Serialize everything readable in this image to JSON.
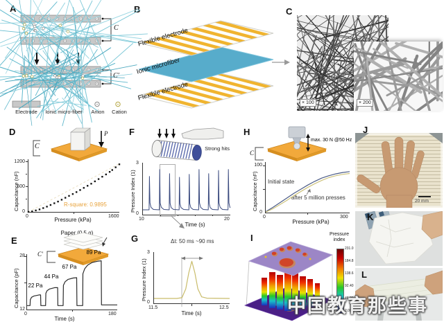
{
  "figure": {
    "panel_labels": {
      "A": "A",
      "B": "B",
      "C": "C",
      "D": "D",
      "E": "E",
      "F": "F",
      "G": "G",
      "H": "H",
      "I": "I",
      "J": "J",
      "K": "K",
      "L": "L"
    },
    "watermark": "中国教育那些事"
  },
  "panel_a": {
    "cap_top": "C",
    "cap_bottom": "C′",
    "legend": [
      {
        "label": "Electrode"
      },
      {
        "label": "Ionic micro-fiber"
      },
      {
        "label": "Anion"
      },
      {
        "label": "Cation"
      }
    ]
  },
  "panel_b": {
    "layers": [
      "Flexible electrode",
      "Ionic microfiber",
      "Flexible electrode"
    ]
  },
  "panel_c": {
    "magnifications": [
      "× 100",
      "× 200"
    ]
  },
  "panel_d": {
    "inset_cap": "C",
    "inset_force": "P"
  },
  "panel_e": {
    "inset_title": "Paper (0.5 g)",
    "inset_cap": "C′"
  },
  "panel_f": {
    "inset_label": "Strong hits"
  },
  "panel_h": {
    "inset_label": "max. 30 N @50 Hz",
    "inset_cap": "C"
  },
  "panel_j": {
    "scale_label": "20 mm"
  },
  "chart_data": [
    {
      "id": "D",
      "type": "scatter",
      "xlabel": "Pressure (kPa)",
      "ylabel": "Capacitance (nF)",
      "xlim": [
        0,
        1600
      ],
      "ylim": [
        0,
        1250
      ],
      "xticks": [
        "0",
        "1600"
      ],
      "yticks": [
        "0",
        "600",
        "1200"
      ],
      "annotation": "R-square: 0.9895",
      "annotation_color": "#E8A33C",
      "series": [
        {
          "name": "linear fit",
          "style": "line",
          "color": "#EADFC2",
          "dash": "3,3",
          "width": 1,
          "points": [
            [
              0,
              0
            ],
            [
              1600,
              1145
            ]
          ]
        },
        {
          "name": "capacitance",
          "style": "scatter",
          "color": "#151515",
          "points": [
            [
              0,
              2
            ],
            [
              65,
              12
            ],
            [
              130,
              35
            ],
            [
              195,
              60
            ],
            [
              260,
              90
            ],
            [
              325,
              125
            ],
            [
              390,
              165
            ],
            [
              455,
              205
            ],
            [
              520,
              245
            ],
            [
              585,
              290
            ],
            [
              650,
              335
            ],
            [
              715,
              380
            ],
            [
              780,
              425
            ],
            [
              845,
              470
            ],
            [
              910,
              520
            ],
            [
              975,
              570
            ],
            [
              1040,
              620
            ],
            [
              1105,
              670
            ],
            [
              1170,
              725
            ],
            [
              1235,
              780
            ],
            [
              1300,
              835
            ],
            [
              1365,
              890
            ],
            [
              1430,
              950
            ],
            [
              1475,
              995
            ],
            [
              1535,
              1060
            ],
            [
              1600,
              1130
            ]
          ]
        }
      ]
    },
    {
      "id": "E",
      "type": "line",
      "xlabel": "Time (s)",
      "ylabel": "Capacitance (pF)",
      "xlim": [
        0,
        180
      ],
      "ylim": [
        12,
        28.5
      ],
      "xticks": [
        "0",
        "180"
      ],
      "yticks": [
        "12",
        "28"
      ],
      "labels": [
        "22 Pa",
        "44 Pa",
        "67 Pa",
        "89 Pa"
      ],
      "series": [
        {
          "name": "capacitance",
          "style": "line",
          "color": "#2b2b2b",
          "width": 1.2,
          "points": [
            [
              0,
              13.2
            ],
            [
              6,
              13.2
            ],
            [
              6.5,
              15
            ],
            [
              9,
              15.7
            ],
            [
              14,
              16.1
            ],
            [
              24,
              16.4
            ],
            [
              27,
              16.4
            ],
            [
              27.5,
              13.2
            ],
            [
              37,
              13.2
            ],
            [
              37.5,
              16.9
            ],
            [
              40,
              17.7
            ],
            [
              45,
              18.2
            ],
            [
              55,
              18.6
            ],
            [
              61,
              18.6
            ],
            [
              61.5,
              13.2
            ],
            [
              72,
              13.2
            ],
            [
              72.5,
              19.3
            ],
            [
              76,
              20.4
            ],
            [
              82,
              21.1
            ],
            [
              92,
              21.5
            ],
            [
              99,
              21.6
            ],
            [
              99.5,
              13.2
            ],
            [
              111,
              13.2
            ],
            [
              111.5,
              22.8
            ],
            [
              115,
              24.3
            ],
            [
              121,
              25.4
            ],
            [
              130,
              26.2
            ],
            [
              142,
              26.6
            ],
            [
              148,
              26.7
            ],
            [
              148.5,
              13.4
            ],
            [
              180,
              13.4
            ]
          ]
        }
      ]
    },
    {
      "id": "F",
      "type": "line",
      "xlabel": "Time (s)",
      "ylabel": "Pressure Index (1)",
      "xlim": [
        10,
        20
      ],
      "ylim": [
        0,
        3.15
      ],
      "xticks": [
        "10",
        "20"
      ],
      "yticks": [
        "0",
        "3"
      ],
      "series": [
        {
          "name": "pressure index",
          "style": "line",
          "color": "#39497E",
          "width": 1,
          "points": [
            [
              10,
              0.3
            ],
            [
              10.71,
              0.3
            ],
            [
              10.75,
              2.35
            ],
            [
              10.81,
              0.72
            ],
            [
              10.93,
              0.45
            ],
            [
              11.2,
              0.32
            ],
            [
              11.88,
              0.3
            ],
            [
              11.92,
              2.78
            ],
            [
              11.98,
              0.72
            ],
            [
              12.1,
              0.45
            ],
            [
              12.4,
              0.32
            ],
            [
              13.01,
              0.3
            ],
            [
              13.05,
              2.52
            ],
            [
              13.11,
              0.7
            ],
            [
              13.23,
              0.44
            ],
            [
              13.5,
              0.32
            ],
            [
              14.14,
              0.3
            ],
            [
              14.18,
              2.3
            ],
            [
              14.24,
              0.68
            ],
            [
              14.36,
              0.44
            ],
            [
              14.65,
              0.32
            ],
            [
              15.26,
              0.3
            ],
            [
              15.3,
              2.48
            ],
            [
              15.36,
              0.7
            ],
            [
              15.48,
              0.44
            ],
            [
              15.75,
              0.32
            ],
            [
              16.38,
              0.3
            ],
            [
              16.42,
              2.78
            ],
            [
              16.48,
              0.72
            ],
            [
              16.6,
              0.45
            ],
            [
              16.9,
              0.32
            ],
            [
              17.48,
              0.3
            ],
            [
              17.52,
              2.52
            ],
            [
              17.58,
              0.7
            ],
            [
              17.7,
              0.44
            ],
            [
              17.95,
              0.32
            ],
            [
              18.61,
              0.3
            ],
            [
              18.65,
              2.72
            ],
            [
              18.71,
              0.72
            ],
            [
              18.83,
              0.45
            ],
            [
              19.1,
              0.32
            ],
            [
              19.74,
              0.3
            ],
            [
              19.78,
              2.78
            ],
            [
              19.84,
              0.72
            ],
            [
              19.95,
              0.45
            ],
            [
              20,
              0.42
            ]
          ]
        }
      ]
    },
    {
      "id": "G",
      "type": "line",
      "xlabel": "Time (s)",
      "ylabel": "Pressure Index (1)",
      "xlim": [
        11.5,
        12.5
      ],
      "ylim": [
        0,
        3.15
      ],
      "xticks": [
        "11.5",
        "12.5"
      ],
      "yticks": [
        "0",
        "3"
      ],
      "annotation": "Δt: 50 ms ~90 ms",
      "series": [
        {
          "name": "pressure index",
          "style": "line",
          "color": "#C9BC6B",
          "width": 1.2,
          "points": [
            [
              11.5,
              0.3
            ],
            [
              11.8,
              0.3
            ],
            [
              11.87,
              0.35
            ],
            [
              11.92,
              0.9
            ],
            [
              11.96,
              1.9
            ],
            [
              12,
              2.62
            ],
            [
              12.04,
              1.9
            ],
            [
              12.08,
              0.9
            ],
            [
              12.13,
              0.4
            ],
            [
              12.2,
              0.32
            ],
            [
              12.5,
              0.3
            ]
          ]
        }
      ]
    },
    {
      "id": "H",
      "type": "line",
      "xlabel": "Pressure (kPa)",
      "ylabel": "Capacitance (nF)",
      "xlim": [
        0,
        300
      ],
      "ylim": [
        0,
        107
      ],
      "xticks": [
        "0",
        "300"
      ],
      "yticks": [
        "0",
        "100"
      ],
      "series": [
        {
          "name": "Initial state",
          "style": "line",
          "color": "#4A5A86",
          "width": 1.2,
          "points": [
            [
              0,
              2
            ],
            [
              25,
              11
            ],
            [
              50,
              21
            ],
            [
              75,
              31
            ],
            [
              100,
              41
            ],
            [
              125,
              50
            ],
            [
              150,
              59
            ],
            [
              175,
              67
            ],
            [
              200,
              74
            ],
            [
              225,
              79
            ],
            [
              250,
              83
            ],
            [
              275,
              86
            ],
            [
              300,
              88
            ]
          ]
        },
        {
          "name": "after 5 million presses",
          "style": "line",
          "color": "#CDC27C",
          "width": 1.2,
          "points": [
            [
              0,
              1
            ],
            [
              25,
              8
            ],
            [
              50,
              17
            ],
            [
              75,
              26
            ],
            [
              100,
              36
            ],
            [
              125,
              45
            ],
            [
              150,
              54
            ],
            [
              175,
              62
            ],
            [
              200,
              69
            ],
            [
              225,
              75
            ],
            [
              250,
              79
            ],
            [
              275,
              82
            ],
            [
              300,
              84
            ]
          ]
        }
      ]
    },
    {
      "id": "I",
      "type": "heatmap",
      "colorbar": {
        "title": "Pressure index",
        "ticks": [
          "231.0",
          "184.8",
          "138.6",
          "92.40",
          "46.20",
          "2.000"
        ]
      }
    }
  ]
}
